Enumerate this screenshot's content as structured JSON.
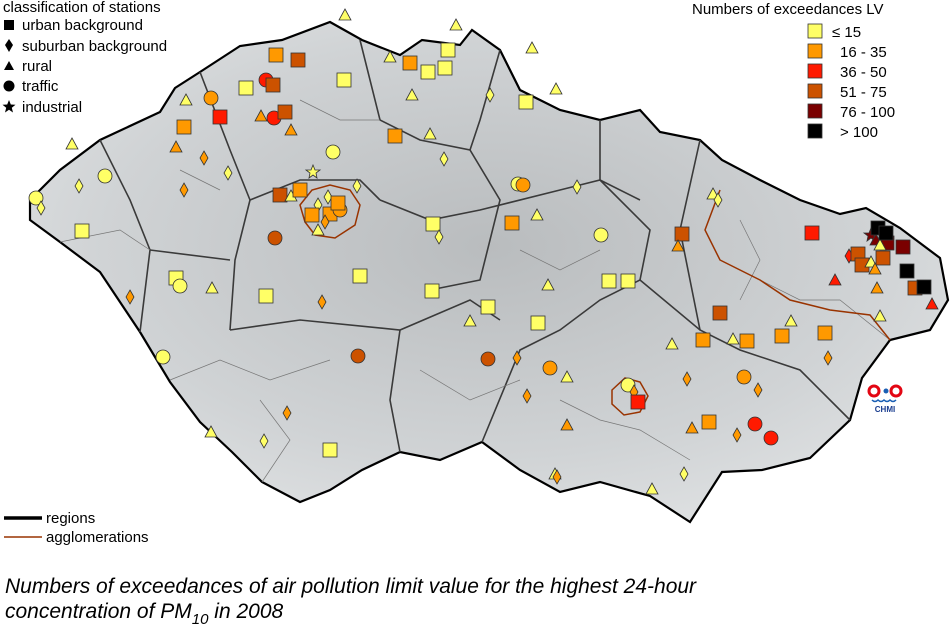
{
  "station_legend": {
    "title": "classification of stations",
    "items": [
      "urban background",
      "suburban background",
      "rural",
      "traffic",
      "industrial"
    ]
  },
  "exceedance_legend": {
    "title": "Numbers of exceedances LV",
    "items": [
      {
        "label": "≤ 15",
        "color": "#ffff66"
      },
      {
        "label": "16 - 35",
        "color": "#ff9900"
      },
      {
        "label": "36 - 50",
        "color": "#ff1a00"
      },
      {
        "label": "51 - 75",
        "color": "#cc5200"
      },
      {
        "label": "76 - 100",
        "color": "#7a0000"
      },
      {
        "label": "> 100",
        "color": "#000000"
      }
    ]
  },
  "line_legend": {
    "items": [
      {
        "label": "regions",
        "color": "#000000"
      },
      {
        "label": "agglomerations",
        "color": "#993300"
      }
    ]
  },
  "logo": "CHMI",
  "caption": {
    "line1": "Numbers of exceedances of air pollution limit value for the highest 24-hour",
    "line2": "concentration of PM",
    "subscript": "10",
    "line2_end": " in 2008"
  }
}
